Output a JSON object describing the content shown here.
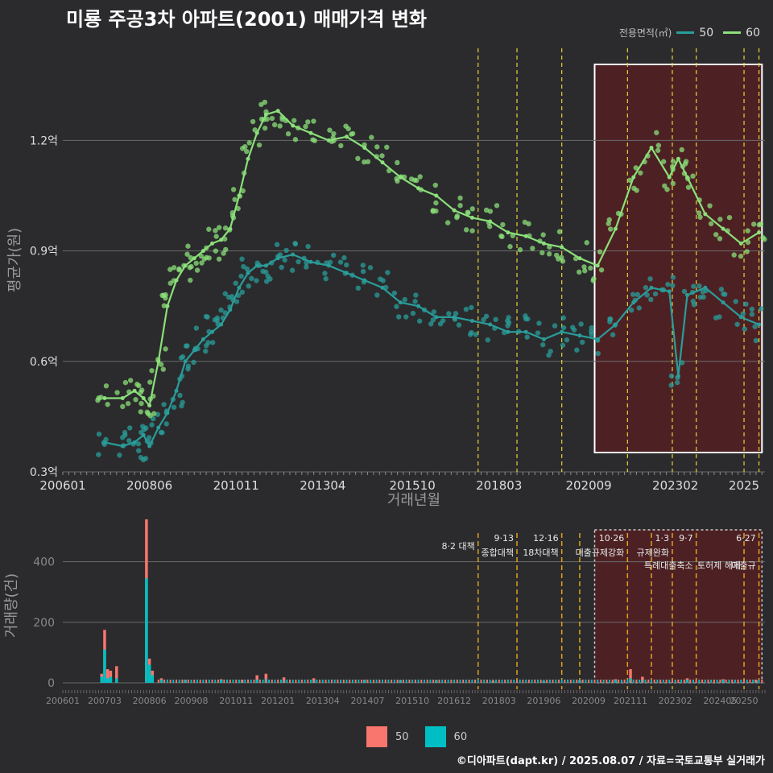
{
  "title": "미룡 주공3차 아파트(2001) 매매가격 변화",
  "credit": "©디아파트(dapt.kr) / 2025.08.07 / 자료=국토교통부 실거래가",
  "colors": {
    "s50_line": "#2a9d9a",
    "s60_line": "#8be07a",
    "s50_bar": "#f8766d",
    "s60_bar": "#00bfc4",
    "vline": "#e6d23a",
    "vline_bottom": "#e0a020",
    "highlight_fill": "#5a1f22",
    "highlight_stroke": "#ffffff",
    "grid": "#6a6a6a",
    "red_mark": "#e03030"
  },
  "chart_data": [
    {
      "type": "line",
      "name": "price",
      "ylabel": "평균가(원)",
      "xlabel": "거래년월",
      "yticks": [
        "0.3억",
        "0.6억",
        "0.9억",
        "1.2억"
      ],
      "yvalues": [
        0.3,
        0.6,
        0.9,
        1.2
      ],
      "ylim": [
        0.3,
        1.45
      ],
      "xticks": [
        "200601",
        "200806",
        "201011",
        "201304",
        "201510",
        "201803",
        "202009",
        "202302",
        "2025"
      ],
      "xlim": [
        "2006-01",
        "2025-08"
      ],
      "legend": {
        "title": "전용면적(㎡)",
        "entries": [
          "50",
          "60"
        ],
        "position": "top-right"
      },
      "highlight": [
        "2020-11",
        "2025-07"
      ],
      "vlines": [
        "2017-08",
        "2018-09",
        "2019-12",
        "2021-10",
        "2023-01",
        "2023-09",
        "2025-01",
        "2025-06"
      ],
      "series": [
        {
          "name": "50",
          "points": [
            [
              "2007-03",
              0.38
            ],
            [
              "2007-09",
              0.37
            ],
            [
              "2008-01",
              0.38
            ],
            [
              "2008-04",
              0.4
            ],
            [
              "2008-06",
              0.37
            ],
            [
              "2008-09",
              0.42
            ],
            [
              "2008-12",
              0.46
            ],
            [
              "2009-03",
              0.52
            ],
            [
              "2009-06",
              0.6
            ],
            [
              "2009-09",
              0.63
            ],
            [
              "2009-12",
              0.66
            ],
            [
              "2010-03",
              0.68
            ],
            [
              "2010-06",
              0.7
            ],
            [
              "2010-09",
              0.74
            ],
            [
              "2010-12",
              0.8
            ],
            [
              "2011-03",
              0.84
            ],
            [
              "2011-06",
              0.86
            ],
            [
              "2011-09",
              0.86
            ],
            [
              "2012-01",
              0.88
            ],
            [
              "2012-06",
              0.89
            ],
            [
              "2012-12",
              0.87
            ],
            [
              "2013-06",
              0.86
            ],
            [
              "2013-12",
              0.84
            ],
            [
              "2014-06",
              0.82
            ],
            [
              "2014-12",
              0.8
            ],
            [
              "2015-06",
              0.76
            ],
            [
              "2015-12",
              0.75
            ],
            [
              "2016-06",
              0.72
            ],
            [
              "2016-12",
              0.72
            ],
            [
              "2017-06",
              0.71
            ],
            [
              "2017-12",
              0.7
            ],
            [
              "2018-06",
              0.68
            ],
            [
              "2018-12",
              0.68
            ],
            [
              "2019-06",
              0.66
            ],
            [
              "2019-12",
              0.68
            ],
            [
              "2020-06",
              0.67
            ],
            [
              "2020-12",
              0.66
            ],
            [
              "2021-06",
              0.7
            ],
            [
              "2021-12",
              0.76
            ],
            [
              "2022-06",
              0.8
            ],
            [
              "2022-12",
              0.79
            ],
            [
              "2023-03",
              0.56
            ],
            [
              "2023-06",
              0.78
            ],
            [
              "2023-12",
              0.8
            ],
            [
              "2024-06",
              0.76
            ],
            [
              "2024-12",
              0.72
            ],
            [
              "2025-06",
              0.7
            ]
          ]
        },
        {
          "name": "60",
          "points": [
            [
              "2007-03",
              0.5
            ],
            [
              "2007-09",
              0.5
            ],
            [
              "2008-01",
              0.52
            ],
            [
              "2008-04",
              0.5
            ],
            [
              "2008-06",
              0.48
            ],
            [
              "2008-09",
              0.6
            ],
            [
              "2008-12",
              0.75
            ],
            [
              "2009-03",
              0.82
            ],
            [
              "2009-06",
              0.86
            ],
            [
              "2009-09",
              0.88
            ],
            [
              "2009-12",
              0.9
            ],
            [
              "2010-03",
              0.92
            ],
            [
              "2010-06",
              0.93
            ],
            [
              "2010-09",
              0.96
            ],
            [
              "2010-12",
              1.05
            ],
            [
              "2011-03",
              1.15
            ],
            [
              "2011-06",
              1.22
            ],
            [
              "2011-09",
              1.27
            ],
            [
              "2012-01",
              1.28
            ],
            [
              "2012-06",
              1.24
            ],
            [
              "2012-12",
              1.22
            ],
            [
              "2013-06",
              1.2
            ],
            [
              "2013-12",
              1.21
            ],
            [
              "2014-06",
              1.18
            ],
            [
              "2014-12",
              1.14
            ],
            [
              "2015-06",
              1.1
            ],
            [
              "2015-12",
              1.07
            ],
            [
              "2016-06",
              1.05
            ],
            [
              "2016-12",
              1.01
            ],
            [
              "2017-06",
              0.99
            ],
            [
              "2017-12",
              0.98
            ],
            [
              "2018-06",
              0.95
            ],
            [
              "2018-12",
              0.94
            ],
            [
              "2019-06",
              0.92
            ],
            [
              "2019-12",
              0.91
            ],
            [
              "2020-06",
              0.88
            ],
            [
              "2020-12",
              0.86
            ],
            [
              "2021-06",
              0.96
            ],
            [
              "2021-12",
              1.1
            ],
            [
              "2022-06",
              1.18
            ],
            [
              "2022-12",
              1.1
            ],
            [
              "2023-03",
              1.15
            ],
            [
              "2023-06",
              1.1
            ],
            [
              "2023-12",
              1.0
            ],
            [
              "2024-06",
              0.96
            ],
            [
              "2024-12",
              0.92
            ],
            [
              "2025-06",
              0.95
            ]
          ]
        }
      ]
    },
    {
      "type": "bar",
      "name": "volume",
      "ylabel": "거래량(건)",
      "yticks": [
        "0",
        "200",
        "400"
      ],
      "yvalues": [
        0,
        200,
        400
      ],
      "ylim": [
        0,
        540
      ],
      "xticks": [
        "200601",
        "200703",
        "200806",
        "200908",
        "201011",
        "201201",
        "201304",
        "201407",
        "201510",
        "201612",
        "201803",
        "201906",
        "202009",
        "202111",
        "202302",
        "202405",
        "20250"
      ],
      "legend": {
        "entries": [
          "50",
          "60"
        ],
        "position": "bottom"
      },
      "highlight": [
        "2020-11",
        "2025-07"
      ],
      "policy_lines": [
        {
          "date": "2017-08",
          "label": "8·2 대책",
          "label2": ""
        },
        {
          "date": "2018-09",
          "label": "9·13",
          "label2": "종합대책"
        },
        {
          "date": "2019-12",
          "label": "12·16",
          "label2": "18차대책"
        },
        {
          "date": "2020-06",
          "label": "",
          "label2": ""
        },
        {
          "date": "2021-10",
          "label": "10·26",
          "label2": "대출규제강화"
        },
        {
          "date": "2022-06",
          "label": "",
          "label2": ""
        },
        {
          "date": "2023-01",
          "label": "1·3",
          "label2": "규제완화"
        },
        {
          "date": "2023-09",
          "label": "9·7",
          "label2": "특례대출축소"
        },
        {
          "date": "2025-01",
          "label": "",
          "label2": "토허제 해제"
        },
        {
          "date": "2025-06",
          "label": "6·27",
          "label2": "대출규"
        }
      ],
      "series": [
        {
          "name": "50",
          "points": [
            [
              "2007-02",
              30
            ],
            [
              "2007-03",
              175
            ],
            [
              "2007-04",
              45
            ],
            [
              "2007-05",
              40
            ],
            [
              "2007-07",
              55
            ],
            [
              "2008-05",
              540
            ],
            [
              "2008-06",
              80
            ],
            [
              "2008-07",
              40
            ],
            [
              "2008-10",
              15
            ],
            [
              "2009-06",
              10
            ],
            [
              "2010-06",
              12
            ],
            [
              "2011-01",
              10
            ],
            [
              "2011-06",
              25
            ],
            [
              "2011-09",
              30
            ],
            [
              "2012-03",
              18
            ],
            [
              "2013-01",
              15
            ],
            [
              "2014-06",
              10
            ],
            [
              "2015-06",
              8
            ],
            [
              "2016-06",
              8
            ],
            [
              "2018-01",
              6
            ],
            [
              "2019-06",
              6
            ],
            [
              "2020-06",
              8
            ],
            [
              "2021-06",
              12
            ],
            [
              "2021-11",
              45
            ],
            [
              "2022-03",
              20
            ],
            [
              "2023-06",
              15
            ],
            [
              "2024-06",
              12
            ],
            [
              "2025-05",
              10
            ]
          ]
        },
        {
          "name": "60",
          "points": [
            [
              "2007-02",
              20
            ],
            [
              "2007-03",
              110
            ],
            [
              "2007-04",
              15
            ],
            [
              "2007-05",
              20
            ],
            [
              "2007-07",
              15
            ],
            [
              "2008-05",
              345
            ],
            [
              "2008-06",
              60
            ],
            [
              "2008-07",
              25
            ],
            [
              "2008-10",
              8
            ],
            [
              "2009-06",
              6
            ],
            [
              "2010-06",
              8
            ],
            [
              "2011-01",
              6
            ],
            [
              "2011-06",
              10
            ],
            [
              "2011-09",
              12
            ],
            [
              "2012-03",
              8
            ],
            [
              "2013-01",
              8
            ],
            [
              "2014-06",
              6
            ],
            [
              "2015-06",
              5
            ],
            [
              "2016-06",
              4
            ],
            [
              "2018-01",
              4
            ],
            [
              "2019-06",
              4
            ],
            [
              "2020-06",
              5
            ],
            [
              "2021-06",
              6
            ],
            [
              "2021-11",
              15
            ],
            [
              "2022-03",
              10
            ],
            [
              "2023-06",
              8
            ],
            [
              "2024-06",
              6
            ],
            [
              "2025-05",
              6
            ]
          ]
        }
      ]
    }
  ],
  "legend_top": {
    "title": "전용면적(㎡)",
    "items": [
      {
        "label": "50"
      },
      {
        "label": "60"
      }
    ]
  },
  "legend_bottom": {
    "items": [
      {
        "label": "50"
      },
      {
        "label": "60"
      }
    ]
  }
}
